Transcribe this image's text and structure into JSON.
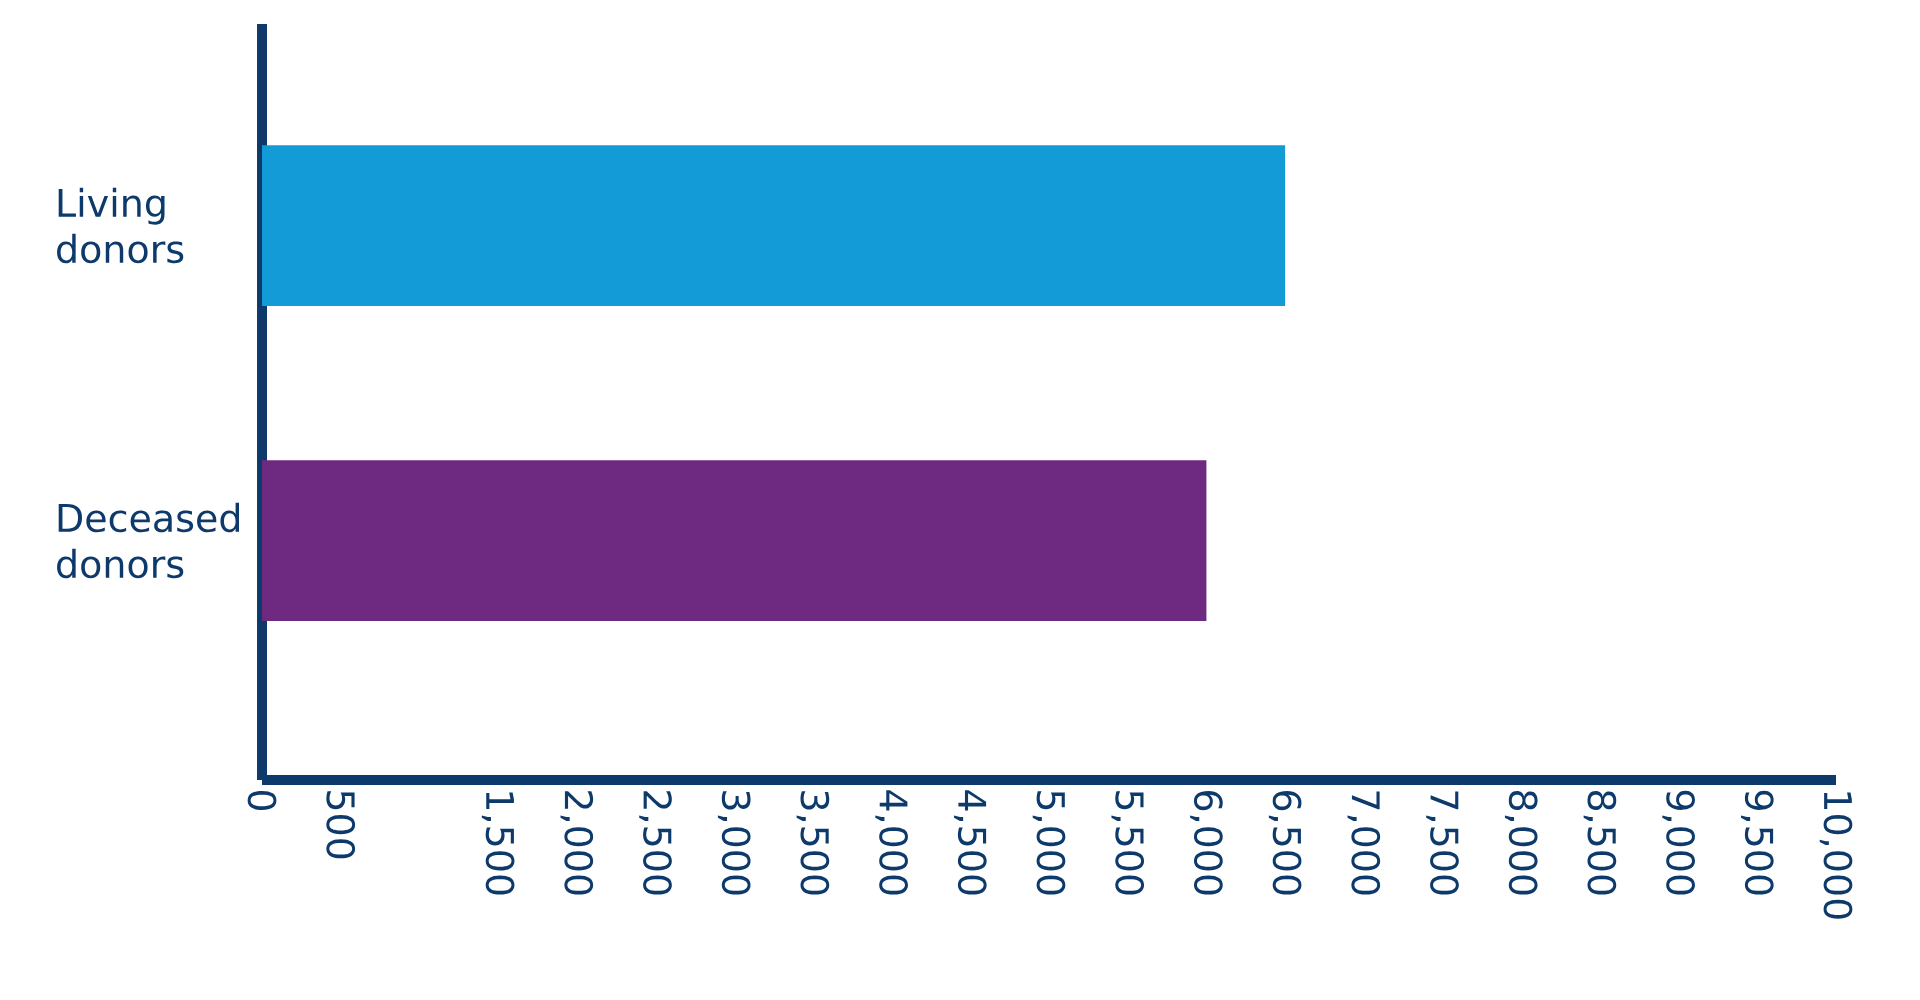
{
  "chart_data": {
    "type": "bar",
    "orientation": "horizontal",
    "categories": [
      "Living donors",
      "Deceased donors"
    ],
    "values": [
      6500,
      6000
    ],
    "colors": [
      "#129bd6",
      "#6e2981"
    ],
    "xlim": [
      0,
      10000
    ],
    "xticks": [
      0,
      500,
      {
        "value": 1500,
        "label": "1,500"
      },
      {
        "value": 2000,
        "label": "2,000"
      },
      {
        "value": 2500,
        "label": "2,500"
      },
      {
        "value": 3000,
        "label": "3,000"
      },
      {
        "value": 3500,
        "label": "3,500"
      },
      {
        "value": 4000,
        "label": "4,000"
      },
      {
        "value": 4500,
        "label": "4,500"
      },
      {
        "value": 5000,
        "label": "5,000"
      },
      {
        "value": 5500,
        "label": "5,500"
      },
      {
        "value": 6000,
        "label": "6,000"
      },
      {
        "value": 6500,
        "label": "6,500"
      },
      {
        "value": 7000,
        "label": "7,000"
      },
      {
        "value": 7500,
        "label": "7,500"
      },
      {
        "value": 8000,
        "label": "8,000"
      },
      {
        "value": 8500,
        "label": "8,500"
      },
      {
        "value": 9000,
        "label": "9,000"
      },
      {
        "value": 9500,
        "label": "9,500"
      },
      {
        "value": 10000,
        "label": "10,000"
      }
    ]
  }
}
